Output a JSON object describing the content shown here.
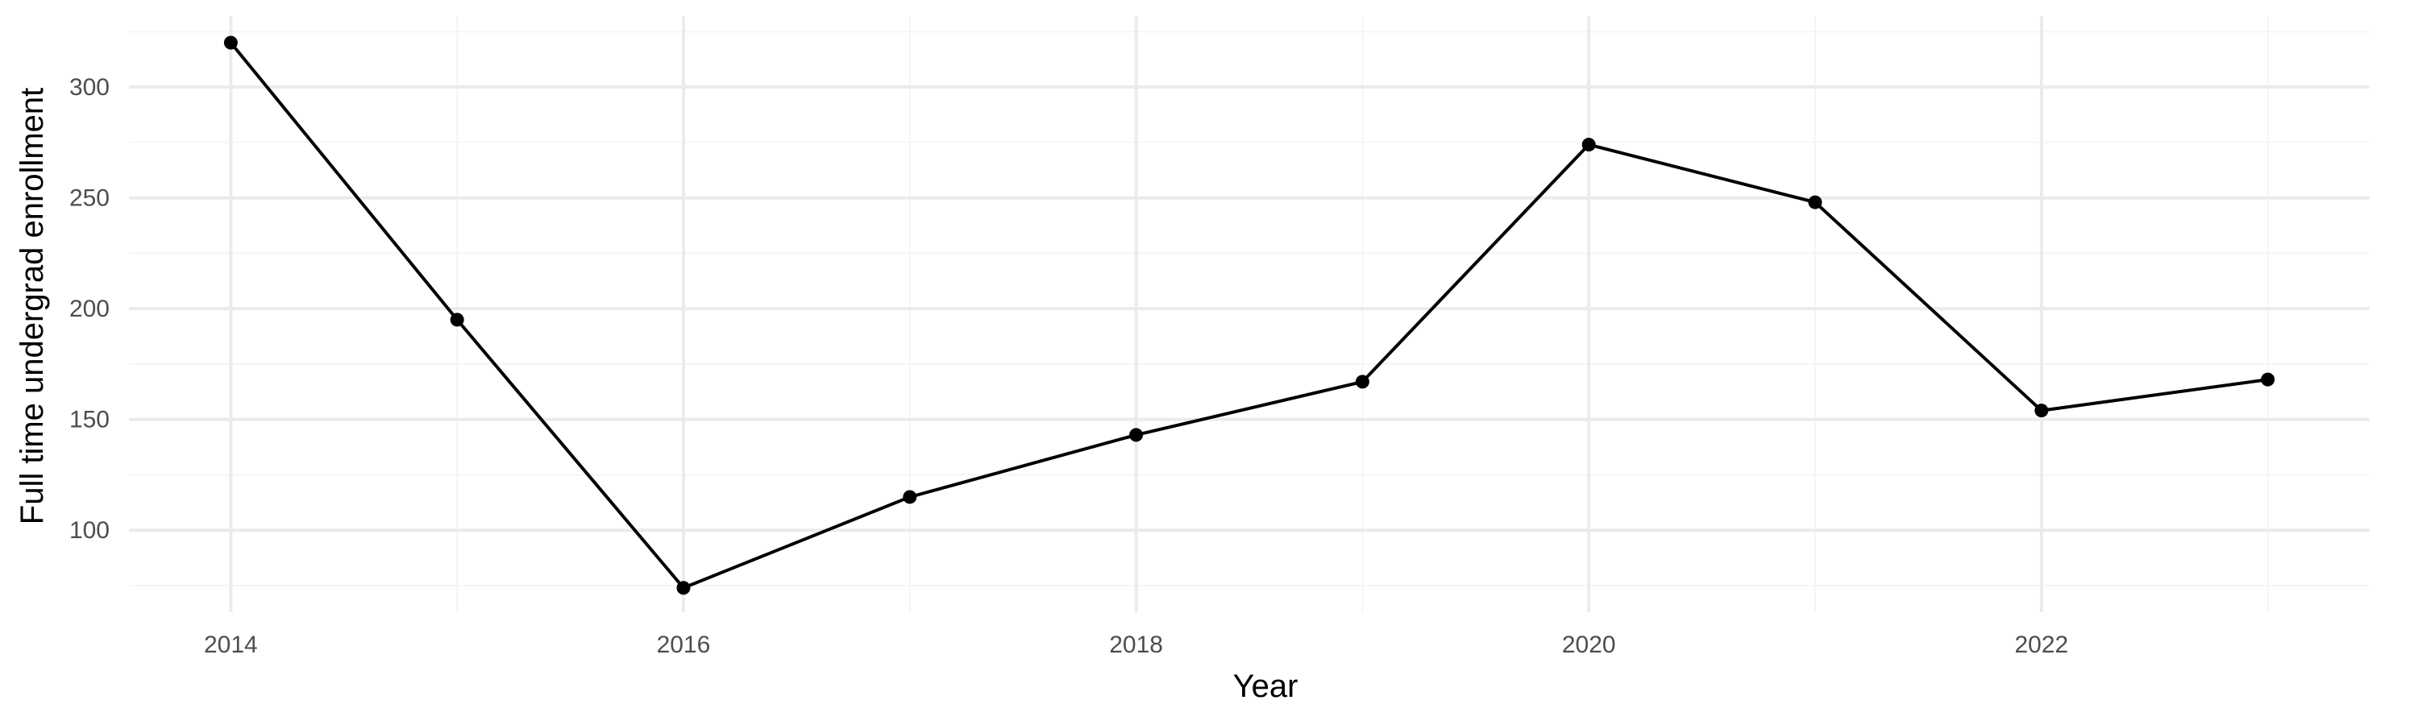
{
  "chart_data": {
    "type": "line",
    "title": "",
    "xlabel": "Year",
    "ylabel": "Full time undergrad enrollment",
    "x": [
      2014,
      2015,
      2016,
      2017,
      2018,
      2019,
      2020,
      2021,
      2022,
      2023
    ],
    "series": [
      {
        "values": [
          320,
          195,
          74,
          115,
          143,
          167,
          274,
          248,
          154,
          168
        ]
      }
    ],
    "xlim": [
      2013.55,
      2023.45
    ],
    "ylim": [
      63,
      332
    ],
    "x_ticks": [
      2014,
      2016,
      2018,
      2020,
      2022
    ],
    "x_tick_labels": [
      "2014",
      "2016",
      "2018",
      "2020",
      "2022"
    ],
    "x_minor_ticks": [
      2015,
      2017,
      2019,
      2021,
      2023
    ],
    "y_ticks": [
      100,
      150,
      200,
      250,
      300
    ],
    "y_tick_labels": [
      "100",
      "150",
      "200",
      "250",
      "300"
    ],
    "y_minor_ticks": [
      75,
      125,
      175,
      225,
      275,
      325
    ],
    "grid": true,
    "legend": "none",
    "colors": {
      "line": "#000000",
      "points": "#000000",
      "grid_major": "#ebebeb",
      "grid_minor": "#f5f5f5",
      "tick_label": "#4d4d4d",
      "axis_title": "#000000",
      "background": "#ffffff"
    }
  }
}
